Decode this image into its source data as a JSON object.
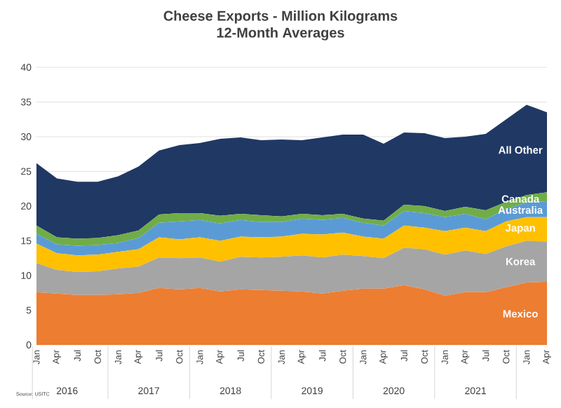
{
  "chart_data": {
    "type": "area",
    "stacked": true,
    "title": "Cheese Exports - Million Kilograms",
    "subtitle": "12-Month Averages",
    "categories": [
      "Jan",
      "Apr",
      "Jul",
      "Oct",
      "Jan",
      "Apr",
      "Jul",
      "Oct",
      "Jan",
      "Apr",
      "Jul",
      "Oct",
      "Jan",
      "Apr",
      "Jul",
      "Oct",
      "Jan",
      "Apr",
      "Jul",
      "Oct",
      "Jan",
      "Apr",
      "Jul",
      "Oct",
      "Jan",
      "Apr"
    ],
    "series": [
      {
        "name": "Mexico",
        "color": "#ed7d31",
        "values": [
          7.6,
          7.4,
          7.2,
          7.2,
          7.3,
          7.5,
          8.2,
          8.0,
          8.2,
          7.7,
          8.0,
          7.9,
          7.8,
          7.7,
          7.4,
          7.8,
          8.1,
          8.1,
          8.6,
          8.0,
          7.1,
          7.6,
          7.6,
          8.3,
          9.0,
          9.1
        ]
      },
      {
        "name": "Korea",
        "color": "#a5a5a5",
        "values": [
          4.2,
          3.4,
          3.3,
          3.4,
          3.7,
          3.8,
          4.4,
          4.5,
          4.4,
          4.3,
          4.7,
          4.7,
          4.9,
          5.2,
          5.2,
          5.2,
          4.7,
          4.4,
          5.4,
          5.8,
          5.9,
          6.0,
          5.5,
          5.9,
          6.0,
          5.8
        ]
      },
      {
        "name": "Japan",
        "color": "#ffc000",
        "values": [
          2.8,
          2.4,
          2.4,
          2.4,
          2.4,
          2.5,
          2.9,
          2.7,
          2.9,
          3.0,
          2.9,
          2.9,
          2.9,
          3.1,
          3.3,
          3.2,
          2.8,
          2.8,
          3.2,
          3.1,
          3.4,
          3.3,
          3.3,
          3.6,
          3.4,
          3.5
        ]
      },
      {
        "name": "Australia",
        "color": "#5b9bd5",
        "values": [
          1.4,
          1.3,
          1.4,
          1.4,
          1.3,
          1.6,
          2.1,
          2.6,
          2.5,
          2.5,
          2.4,
          2.2,
          2.1,
          2.2,
          2.1,
          2.1,
          2.0,
          1.9,
          2.1,
          2.1,
          2.0,
          2.0,
          1.7,
          1.8,
          2.1,
          2.3
        ]
      },
      {
        "name": "Canada",
        "color": "#70ad47",
        "values": [
          1.2,
          1.0,
          1.0,
          1.0,
          1.1,
          1.1,
          1.2,
          1.2,
          1.0,
          1.1,
          0.9,
          1.0,
          0.8,
          0.7,
          0.7,
          0.6,
          0.6,
          0.7,
          0.9,
          1.0,
          0.9,
          1.0,
          1.3,
          1.0,
          1.1,
          1.3
        ]
      },
      {
        "name": "All Other",
        "color": "#203864",
        "values": [
          9.0,
          8.5,
          8.2,
          8.1,
          8.5,
          9.2,
          9.2,
          9.8,
          10.1,
          11.1,
          11.0,
          10.8,
          11.1,
          10.6,
          11.2,
          11.4,
          12.1,
          11.1,
          10.4,
          10.5,
          10.5,
          10.1,
          11.0,
          11.9,
          13.0,
          11.5
        ]
      }
    ],
    "ylim": [
      0,
      40
    ],
    "yticks": [
      0,
      5,
      10,
      15,
      20,
      25,
      30,
      35,
      40
    ],
    "grid": "y",
    "annotations": [
      "2016",
      "2017",
      "2018",
      "2019",
      "2020",
      "2021",
      "Source: USITC"
    ]
  }
}
